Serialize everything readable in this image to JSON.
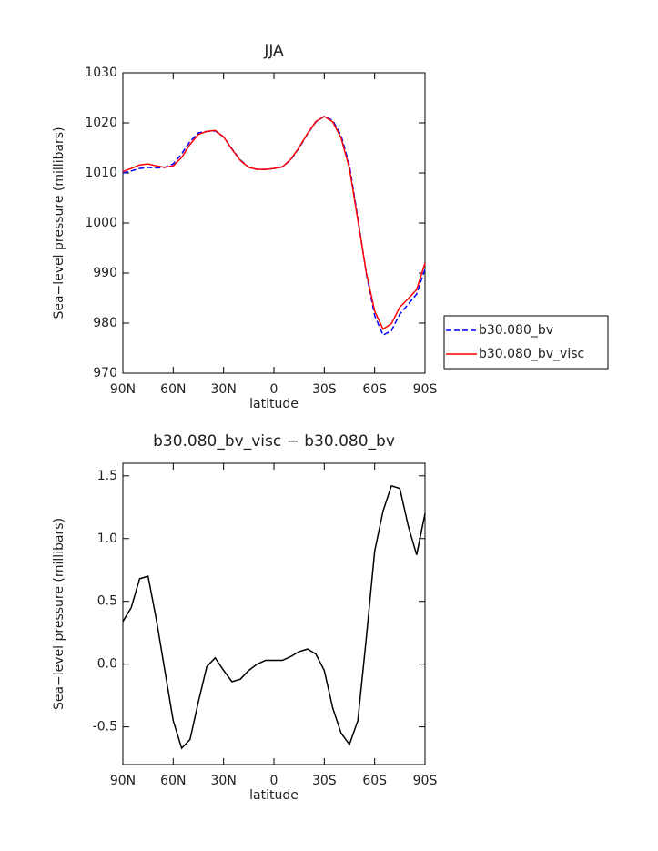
{
  "chart_data": [
    {
      "type": "line",
      "title": "JJA",
      "x_label": "latitude",
      "y_label": "Sea−level pressure (millibars)",
      "x": [
        90,
        85,
        80,
        75,
        70,
        65,
        60,
        55,
        50,
        45,
        40,
        35,
        30,
        25,
        20,
        15,
        10,
        5,
        0,
        -5,
        -10,
        -15,
        -20,
        -25,
        -30,
        -35,
        -40,
        -45,
        -50,
        -55,
        -60,
        -65,
        -70,
        -75,
        -80,
        -85,
        -90
      ],
      "series": [
        {
          "name": "b30.080_bv",
          "color": "#0000ff",
          "linestyle": "dashed",
          "values": [
            1010,
            1010.4,
            1010.9,
            1011.1,
            1011,
            1011.1,
            1011.8,
            1013.8,
            1016.3,
            1018,
            1018.3,
            1018.4,
            1017.2,
            1014.8,
            1012.6,
            1011.1,
            1010.7,
            1010.7,
            1010.9,
            1011.2,
            1012.6,
            1015,
            1017.8,
            1020.2,
            1021.3,
            1020.5,
            1017.5,
            1011.5,
            1001,
            990,
            981.5,
            977.6,
            978.5,
            981.8,
            983.8,
            985.8,
            990.8
          ]
        },
        {
          "name": "b30.080_bv_visc",
          "color": "#ff0000",
          "linestyle": "solid",
          "values": [
            1010.3,
            1010.9,
            1011.6,
            1011.8,
            1011.4,
            1011.1,
            1011.4,
            1013.1,
            1015.7,
            1017.7,
            1018.3,
            1018.5,
            1017.2,
            1014.7,
            1012.5,
            1011.1,
            1010.7,
            1010.7,
            1010.9,
            1011.2,
            1012.7,
            1015.1,
            1017.9,
            1020.3,
            1021.3,
            1020.2,
            1017,
            1010.9,
            1000.6,
            990.2,
            982.4,
            978.8,
            979.9,
            983.2,
            984.9,
            986.7,
            992
          ]
        }
      ],
      "xlim": [
        90,
        -90
      ],
      "xticks": [
        {
          "value": 90,
          "label": "90N"
        },
        {
          "value": 60,
          "label": "60N"
        },
        {
          "value": 30,
          "label": "30N"
        },
        0,
        {
          "value": -30,
          "label": "30S"
        },
        {
          "value": -60,
          "label": "60S"
        },
        {
          "value": -90,
          "label": "90S"
        }
      ],
      "ylim": [
        970,
        1030
      ],
      "yticks": [
        970,
        980,
        990,
        1000,
        1010,
        1020,
        1030
      ],
      "legend": "right"
    },
    {
      "type": "line",
      "title": "b30.080_bv_visc − b30.080_bv",
      "x_label": "latitude",
      "y_label": "Sea−level pressure (millibars)",
      "x": [
        90,
        85,
        80,
        75,
        70,
        65,
        60,
        55,
        50,
        45,
        40,
        35,
        30,
        25,
        20,
        15,
        10,
        5,
        0,
        -5,
        -10,
        -15,
        -20,
        -25,
        -30,
        -35,
        -40,
        -45,
        -50,
        -55,
        -60,
        -65,
        -70,
        -75,
        -80,
        -85,
        -90
      ],
      "series": [
        {
          "color": "#000000",
          "linestyle": "solid",
          "values": [
            0.34,
            0.45,
            0.68,
            0.7,
            0.35,
            -0.05,
            -0.45,
            -0.67,
            -0.6,
            -0.3,
            -0.02,
            0.05,
            -0.05,
            -0.14,
            -0.12,
            -0.05,
            0,
            0.03,
            0.03,
            0.03,
            0.06,
            0.1,
            0.12,
            0.08,
            -0.05,
            -0.35,
            -0.55,
            -0.64,
            -0.45,
            0.2,
            0.9,
            1.22,
            1.42,
            1.4,
            1.1,
            0.87,
            1.2
          ]
        }
      ],
      "xlim": [
        90,
        -90
      ],
      "xticks": [
        {
          "value": 90,
          "label": "90N"
        },
        {
          "value": 60,
          "label": "60N"
        },
        {
          "value": 30,
          "label": "30N"
        },
        0,
        {
          "value": -30,
          "label": "30S"
        },
        {
          "value": -60,
          "label": "60S"
        },
        {
          "value": -90,
          "label": "90S"
        }
      ],
      "ylim": [
        -0.8,
        1.6
      ],
      "yticks": [
        -0.5,
        {
          "value": 0,
          "label": "0.0"
        },
        0.5,
        {
          "value": 1,
          "label": "1.0"
        },
        1.5
      ]
    }
  ]
}
